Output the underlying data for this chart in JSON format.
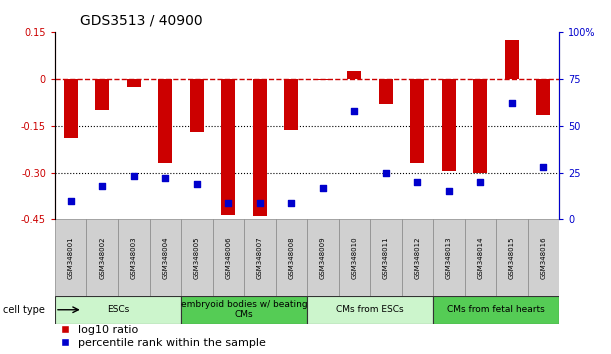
{
  "title": "GDS3513 / 40900",
  "samples": [
    "GSM348001",
    "GSM348002",
    "GSM348003",
    "GSM348004",
    "GSM348005",
    "GSM348006",
    "GSM348007",
    "GSM348008",
    "GSM348009",
    "GSM348010",
    "GSM348011",
    "GSM348012",
    "GSM348013",
    "GSM348014",
    "GSM348015",
    "GSM348016"
  ],
  "log10_ratio": [
    -0.19,
    -0.1,
    -0.025,
    -0.27,
    -0.17,
    -0.435,
    -0.44,
    -0.165,
    -0.005,
    0.025,
    -0.08,
    -0.27,
    -0.295,
    -0.3,
    0.125,
    -0.115
  ],
  "percentile_rank": [
    10,
    18,
    23,
    22,
    19,
    9,
    9,
    9,
    17,
    58,
    25,
    20,
    15,
    20,
    62,
    28
  ],
  "cell_types": [
    {
      "label": "ESCs",
      "start": 0,
      "end": 3,
      "color": "#ccf5cc"
    },
    {
      "label": "embryoid bodies w/ beating\nCMs",
      "start": 4,
      "end": 7,
      "color": "#55cc55"
    },
    {
      "label": "CMs from ESCs",
      "start": 8,
      "end": 11,
      "color": "#ccf5cc"
    },
    {
      "label": "CMs from fetal hearts",
      "start": 12,
      "end": 15,
      "color": "#55cc55"
    }
  ],
  "ylim_left": [
    -0.45,
    0.15
  ],
  "ylim_right": [
    0,
    100
  ],
  "bar_color": "#CC0000",
  "dot_color": "#0000CC",
  "hline_color": "#CC0000",
  "sample_box_color": "#D0D0D0",
  "bg_color": "#ffffff",
  "title_fontsize": 10,
  "tick_fontsize": 7,
  "sample_fontsize": 5.0,
  "ct_fontsize": 6.5,
  "legend_fontsize": 8
}
